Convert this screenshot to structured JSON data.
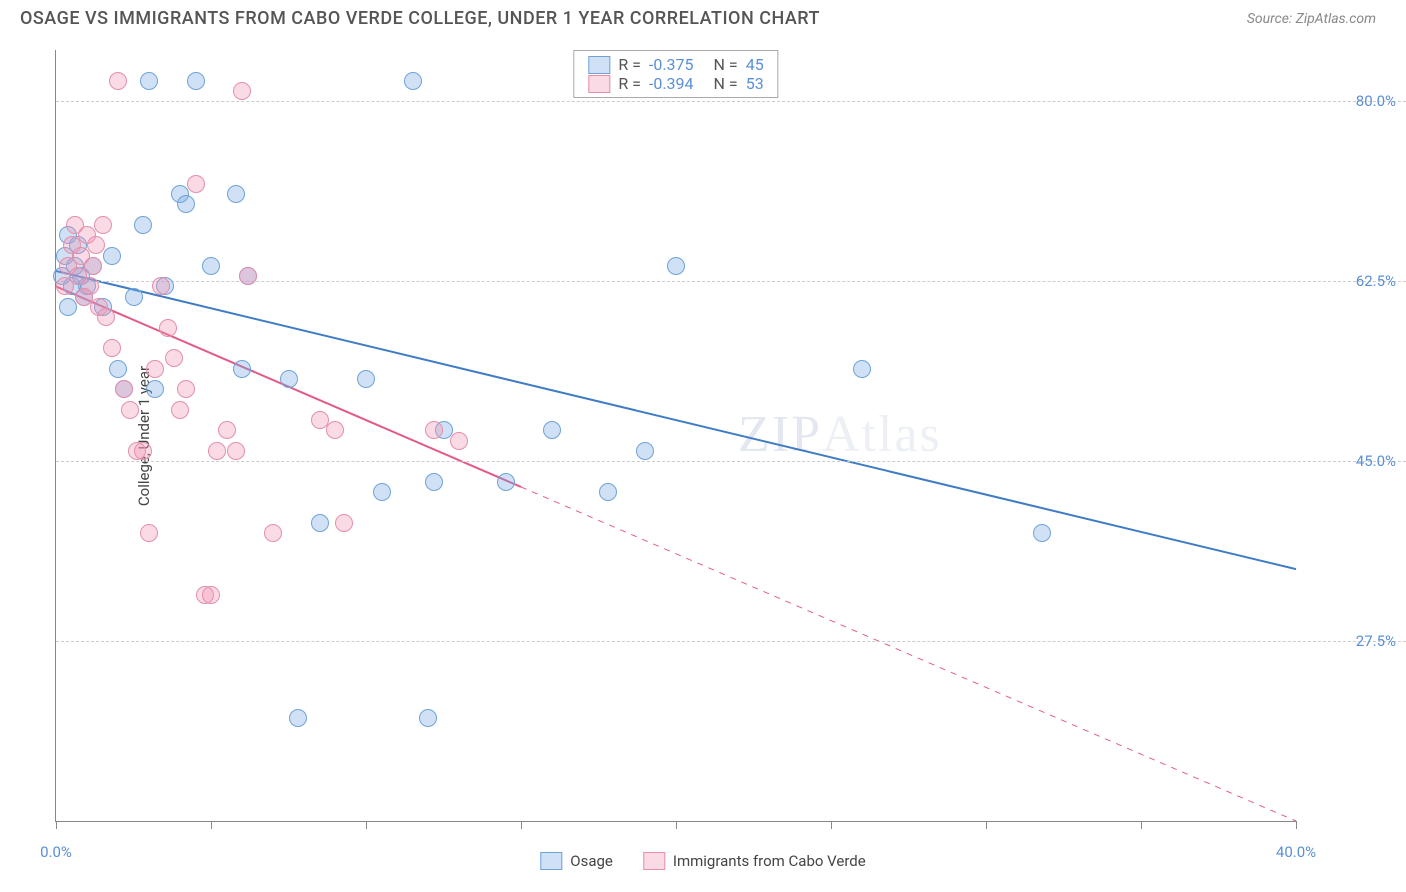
{
  "title": "OSAGE VS IMMIGRANTS FROM CABO VERDE COLLEGE, UNDER 1 YEAR CORRELATION CHART",
  "source": "Source: ZipAtlas.com",
  "y_axis_label": "College, Under 1 year",
  "watermark": {
    "bold": "ZIP",
    "light": "Atlas"
  },
  "chart": {
    "type": "scatter",
    "background_color": "#ffffff",
    "grid_color": "#cccccc",
    "xlim": [
      0,
      40
    ],
    "ylim": [
      10,
      85
    ],
    "x_ticks": [
      0,
      5,
      10,
      15,
      20,
      25,
      30,
      35,
      40
    ],
    "x_tick_labels": {
      "0": "0.0%",
      "40": "40.0%"
    },
    "y_ticks": [
      27.5,
      45.0,
      62.5,
      80.0
    ],
    "y_tick_labels": [
      "27.5%",
      "45.0%",
      "62.5%",
      "80.0%"
    ],
    "point_radius": 9,
    "point_border_width": 1.2,
    "series": [
      {
        "name": "Osage",
        "fill_color": "rgba(120,170,225,0.35)",
        "stroke_color": "#6fa3d8",
        "R": "-0.375",
        "N": "45",
        "trend": {
          "x1": 0,
          "y1": 63.5,
          "x2": 40,
          "y2": 34.5,
          "solid_until_x": 40,
          "color": "#3f7cc4",
          "width": 2
        },
        "points": [
          [
            0.2,
            63
          ],
          [
            0.3,
            65
          ],
          [
            0.4,
            67
          ],
          [
            0.4,
            60
          ],
          [
            0.5,
            62
          ],
          [
            0.6,
            64
          ],
          [
            0.7,
            66
          ],
          [
            0.8,
            63
          ],
          [
            0.9,
            61
          ],
          [
            1.0,
            62
          ],
          [
            1.2,
            64
          ],
          [
            1.5,
            60
          ],
          [
            1.8,
            65
          ],
          [
            2.0,
            54
          ],
          [
            2.2,
            52
          ],
          [
            2.5,
            61
          ],
          [
            2.8,
            68
          ],
          [
            3.0,
            82
          ],
          [
            3.2,
            52
          ],
          [
            3.5,
            62
          ],
          [
            4.0,
            71
          ],
          [
            4.2,
            70
          ],
          [
            4.5,
            82
          ],
          [
            5.0,
            64
          ],
          [
            5.8,
            71
          ],
          [
            6.0,
            54
          ],
          [
            6.2,
            63
          ],
          [
            7.5,
            53
          ],
          [
            7.8,
            20
          ],
          [
            8.5,
            39
          ],
          [
            10.0,
            53
          ],
          [
            10.5,
            42
          ],
          [
            11.5,
            82
          ],
          [
            12.0,
            20
          ],
          [
            12.2,
            43
          ],
          [
            12.5,
            48
          ],
          [
            14.5,
            43
          ],
          [
            16.0,
            48
          ],
          [
            17.8,
            42
          ],
          [
            19.0,
            46
          ],
          [
            20.0,
            64
          ],
          [
            26.0,
            54
          ],
          [
            31.8,
            38
          ]
        ]
      },
      {
        "name": "Immigrants from Cabo Verde",
        "fill_color": "rgba(240,150,180,0.35)",
        "stroke_color": "#e58fab",
        "R": "-0.394",
        "N": "53",
        "trend": {
          "x1": 0,
          "y1": 62,
          "x2": 40,
          "y2": 10,
          "solid_until_x": 15,
          "color": "#e15a8a",
          "width": 2
        },
        "points": [
          [
            0.3,
            62
          ],
          [
            0.4,
            64
          ],
          [
            0.5,
            66
          ],
          [
            0.6,
            68
          ],
          [
            0.7,
            63
          ],
          [
            0.8,
            65
          ],
          [
            0.9,
            61
          ],
          [
            1.0,
            67
          ],
          [
            1.1,
            62
          ],
          [
            1.2,
            64
          ],
          [
            1.3,
            66
          ],
          [
            1.4,
            60
          ],
          [
            1.5,
            68
          ],
          [
            1.6,
            59
          ],
          [
            1.8,
            56
          ],
          [
            2.0,
            82
          ],
          [
            2.2,
            52
          ],
          [
            2.4,
            50
          ],
          [
            2.6,
            46
          ],
          [
            2.8,
            46
          ],
          [
            3.0,
            38
          ],
          [
            3.2,
            54
          ],
          [
            3.4,
            62
          ],
          [
            3.6,
            58
          ],
          [
            3.8,
            55
          ],
          [
            4.0,
            50
          ],
          [
            4.2,
            52
          ],
          [
            4.5,
            72
          ],
          [
            4.8,
            32
          ],
          [
            5.0,
            32
          ],
          [
            5.2,
            46
          ],
          [
            5.5,
            48
          ],
          [
            5.8,
            46
          ],
          [
            6.0,
            81
          ],
          [
            6.2,
            63
          ],
          [
            7.0,
            38
          ],
          [
            8.5,
            49
          ],
          [
            9.0,
            48
          ],
          [
            9.3,
            39
          ],
          [
            12.2,
            48
          ],
          [
            13.0,
            47
          ]
        ]
      }
    ]
  },
  "legend_labels": {
    "r": "R =",
    "n": "N ="
  },
  "bottom_legend": [
    "Osage",
    "Immigrants from Cabo Verde"
  ]
}
